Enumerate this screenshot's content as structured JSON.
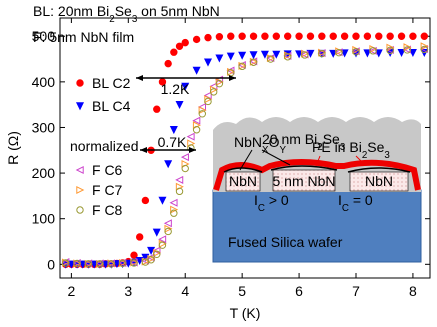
{
  "chart_data": {
    "type": "scatter",
    "title": [
      "BL: 20nm Bi",
      "2",
      "Se",
      "3",
      " on 5nm NbN"
    ],
    "subtitle": "F:  5nm NbN film",
    "x_label": "T (K)",
    "y_label": "R (Ω)",
    "legend_note": "normalized",
    "xlim": [
      1.8,
      8.3
    ],
    "ylim": [
      -30,
      540
    ],
    "xticks": [
      2,
      3,
      4,
      5,
      6,
      7,
      8
    ],
    "yticks": [
      0,
      100,
      200,
      300,
      400,
      500
    ],
    "grid": false,
    "annotations": [
      {
        "text": "1.2K"
      },
      {
        "text": "0.7K"
      }
    ],
    "series": [
      {
        "name": "BL C2",
        "color": "#ff0000",
        "marker": "circle",
        "filled": true,
        "x": [
          1.9,
          2.0,
          2.1,
          2.2,
          2.3,
          2.4,
          2.5,
          2.6,
          2.7,
          2.8,
          2.9,
          3.0,
          3.1,
          3.2,
          3.3,
          3.4,
          3.5,
          3.6,
          3.7,
          3.8,
          3.9,
          4.0,
          4.2,
          4.4,
          4.6,
          4.8,
          5.0,
          5.2,
          5.4,
          5.6,
          5.8,
          6.0,
          6.2,
          6.4,
          6.6,
          6.8,
          7.0,
          7.2,
          7.4,
          7.6,
          7.8,
          8.0,
          8.2
        ],
        "values": [
          0,
          0,
          0,
          0,
          0,
          0,
          0,
          1,
          1,
          2,
          3,
          6,
          20,
          60,
          140,
          250,
          340,
          400,
          440,
          465,
          478,
          486,
          493,
          497,
          499,
          500,
          500,
          500,
          500,
          500,
          500,
          500,
          500,
          500,
          500,
          500,
          500,
          500,
          500,
          500,
          500,
          500,
          500
        ]
      },
      {
        "name": "BL C4",
        "color": "#0000ff",
        "marker": "triangle-down",
        "filled": true,
        "x": [
          1.9,
          2.0,
          2.1,
          2.2,
          2.3,
          2.4,
          2.5,
          2.6,
          2.7,
          2.8,
          2.9,
          3.0,
          3.1,
          3.2,
          3.3,
          3.4,
          3.5,
          3.6,
          3.7,
          3.8,
          3.9,
          4.0,
          4.2,
          4.4,
          4.6,
          4.8,
          5.0,
          5.2,
          5.4,
          5.6,
          5.8,
          6.0,
          6.2,
          6.4,
          6.6,
          6.8,
          7.0,
          7.2,
          7.4,
          7.6,
          7.8,
          8.0,
          8.2
        ],
        "values": [
          0,
          0,
          0,
          0,
          0,
          0,
          0,
          0,
          0,
          1,
          1,
          2,
          4,
          8,
          15,
          30,
          70,
          140,
          220,
          295,
          350,
          390,
          425,
          443,
          452,
          456,
          458,
          459,
          460,
          460,
          461,
          461,
          462,
          462,
          462,
          463,
          463,
          463,
          463,
          464,
          464,
          464,
          464
        ]
      },
      {
        "name": "F C6",
        "color": "#cc44cc",
        "marker": "triangle-left",
        "filled": false,
        "x": [
          1.9,
          2.1,
          2.3,
          2.5,
          2.7,
          2.9,
          3.1,
          3.3,
          3.4,
          3.5,
          3.6,
          3.7,
          3.8,
          3.9,
          4.0,
          4.1,
          4.2,
          4.3,
          4.4,
          4.5,
          4.6,
          4.8,
          5.0,
          5.2,
          5.5,
          5.8,
          6.1,
          6.4,
          6.7,
          7.0,
          7.3,
          7.6,
          7.9,
          8.2
        ],
        "values": [
          5,
          3,
          2,
          2,
          2,
          3,
          4,
          8,
          15,
          30,
          55,
          90,
          135,
          185,
          235,
          280,
          315,
          345,
          370,
          390,
          405,
          425,
          437,
          445,
          452,
          457,
          460,
          463,
          465,
          467,
          468,
          470,
          471,
          472
        ]
      },
      {
        "name": "F C7",
        "color": "#ff9933",
        "marker": "triangle-right",
        "filled": false,
        "x": [
          1.9,
          2.1,
          2.3,
          2.5,
          2.7,
          2.9,
          3.1,
          3.3,
          3.4,
          3.5,
          3.6,
          3.7,
          3.8,
          3.9,
          4.0,
          4.1,
          4.2,
          4.3,
          4.4,
          4.5,
          4.6,
          4.8,
          5.0,
          5.2,
          5.5,
          5.8,
          6.1,
          6.4,
          6.7,
          7.0,
          7.3,
          7.6,
          7.9,
          8.2
        ],
        "values": [
          4,
          2,
          1,
          1,
          2,
          3,
          4,
          6,
          12,
          25,
          45,
          78,
          120,
          170,
          220,
          265,
          305,
          338,
          362,
          383,
          400,
          422,
          435,
          444,
          452,
          458,
          462,
          464,
          467,
          470,
          472,
          475,
          476,
          478
        ]
      },
      {
        "name": "F C8",
        "color": "#999933",
        "marker": "circle",
        "filled": false,
        "x": [
          1.9,
          2.1,
          2.3,
          2.5,
          2.7,
          2.9,
          3.1,
          3.3,
          3.4,
          3.5,
          3.6,
          3.7,
          3.8,
          3.9,
          4.0,
          4.1,
          4.2,
          4.3,
          4.4,
          4.5,
          4.6,
          4.8,
          5.0,
          5.2,
          5.5,
          5.8,
          6.1,
          6.4,
          6.7,
          7.0,
          7.3,
          7.6,
          7.9,
          8.2
        ],
        "values": [
          3,
          2,
          1,
          1,
          1,
          2,
          3,
          5,
          10,
          22,
          42,
          72,
          112,
          160,
          210,
          255,
          295,
          330,
          357,
          378,
          396,
          420,
          434,
          443,
          450,
          455,
          459,
          462,
          464,
          466,
          468,
          469,
          470,
          471
        ]
      }
    ]
  },
  "inset": {
    "layer_label": [
      "20 nm Bi",
      "2",
      "Se",
      "3"
    ],
    "oxide_label": [
      "NbN",
      "X",
      "O",
      "Y"
    ],
    "pe_label": [
      "PE in Bi",
      "2",
      "Se",
      "3"
    ],
    "islands": [
      "NbN",
      "5 nm NbN",
      "NbN"
    ],
    "current_labels": [
      [
        "I",
        "C",
        " > 0"
      ],
      [
        "I",
        "C",
        " = 0"
      ]
    ],
    "substrate_label": "Fused Silica wafer"
  }
}
